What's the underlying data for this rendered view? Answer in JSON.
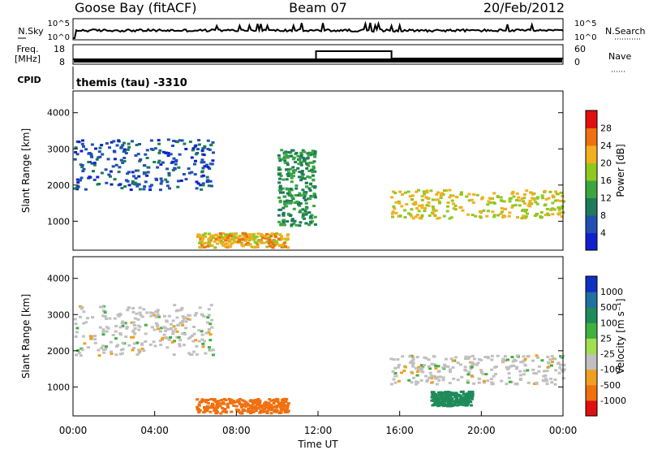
{
  "header": {
    "station": "Goose Bay (fitACF)",
    "beam": "Beam 07",
    "date": "20/Feb/2012"
  },
  "top_panels": {
    "nsky": {
      "label": "N.Sky",
      "right_label": "N.Search",
      "ticks_left": [
        "10^5",
        "10^0"
      ],
      "ticks_right": [
        "10^5",
        "10^0"
      ]
    },
    "freq": {
      "label_line1": "Freq.",
      "label_line2": "[MHz]",
      "right_label": "Nave",
      "ticks_left": [
        "18",
        "8"
      ],
      "ticks_right": [
        "60",
        "0"
      ]
    },
    "cpid": {
      "label": "CPID",
      "program": "themis (tau) -3310"
    }
  },
  "chart_data": [
    {
      "type": "heatmap",
      "name": "power",
      "ylabel": "Slant Range [km]",
      "ylim": [
        200,
        4600
      ],
      "yticks": [
        "1000",
        "2000",
        "3000",
        "4000"
      ],
      "colorbar": {
        "label": "Power [dB]",
        "range": [
          0,
          32
        ],
        "ticks": [
          "4",
          "8",
          "12",
          "16",
          "20",
          "24",
          "28"
        ],
        "colors": [
          "#1020d0",
          "#2050b0",
          "#1f7a5a",
          "#3aa640",
          "#90c820",
          "#f0b020",
          "#f07010",
          "#e01010"
        ]
      },
      "echo_regions_approx": [
        {
          "t": [
            0.0,
            6.8
          ],
          "range_km": [
            1900,
            3300
          ],
          "value_db": 6
        },
        {
          "t": [
            10.0,
            11.8
          ],
          "range_km": [
            900,
            3000
          ],
          "value_db": 12
        },
        {
          "t": [
            15.5,
            24.0
          ],
          "range_km": [
            1100,
            1900
          ],
          "value_db": 20
        },
        {
          "t": [
            6.0,
            10.5
          ],
          "range_km": [
            300,
            700
          ],
          "value_db": 22
        }
      ]
    },
    {
      "type": "heatmap",
      "name": "velocity",
      "ylabel": "Slant Range [km]",
      "xlabel": "Time UT",
      "ylim": [
        200,
        4600
      ],
      "yticks": [
        "1000",
        "2000",
        "3000",
        "4000"
      ],
      "xticks": [
        "00:00",
        "04:00",
        "08:00",
        "12:00",
        "16:00",
        "20:00",
        "00:00"
      ],
      "colorbar": {
        "label": "Velocity [m s⁻¹]",
        "ticks": [
          "1000",
          "500",
          "100",
          "25",
          "-25",
          "-100",
          "-500",
          "-1000"
        ],
        "colors": [
          "#1030c0",
          "#2070a0",
          "#1f8a5a",
          "#40b040",
          "#a0e050",
          "#c0c0c0",
          "#f0a020",
          "#f07010",
          "#e01010"
        ]
      },
      "echo_regions_approx": [
        {
          "t": [
            0.0,
            6.8
          ],
          "range_km": [
            1900,
            3300
          ],
          "value_ms": 0
        },
        {
          "t": [
            15.5,
            24.0
          ],
          "range_km": [
            1100,
            1900
          ],
          "value_ms": 0
        },
        {
          "t": [
            6.0,
            10.5
          ],
          "range_km": [
            300,
            700
          ],
          "value_ms": -300
        },
        {
          "t": [
            17.5,
            19.5
          ],
          "range_km": [
            500,
            900
          ],
          "value_ms": 150
        }
      ]
    }
  ],
  "freq_series": {
    "x_hours": [
      0,
      11.9,
      11.9,
      15.6,
      15.6,
      24
    ],
    "freq_mhz": [
      10.5,
      10.5,
      15.5,
      15.5,
      11,
      11
    ]
  }
}
